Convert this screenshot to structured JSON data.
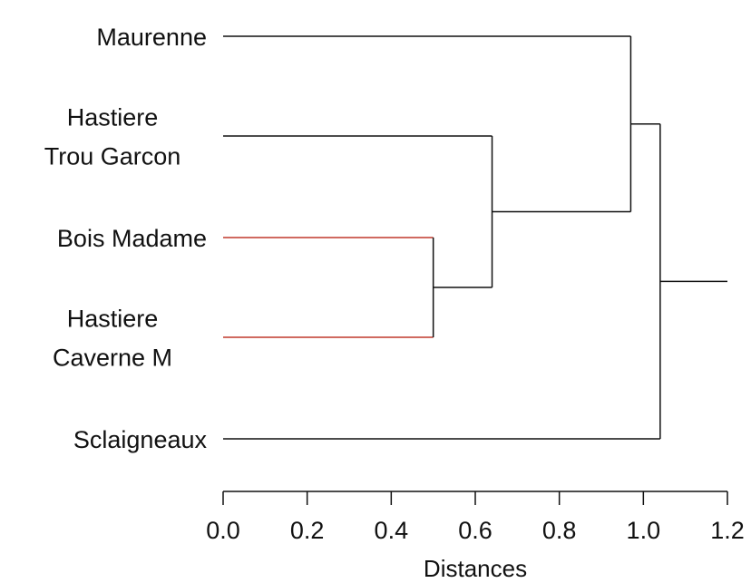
{
  "chart_data": {
    "type": "dendrogram",
    "orientation": "leaves-left",
    "xlabel": "Distances",
    "xlim": [
      0,
      1.2
    ],
    "ticks": [
      0.0,
      0.2,
      0.4,
      0.6,
      0.8,
      1.0,
      1.2
    ],
    "tick_labels": [
      "0.0",
      "0.2",
      "0.4",
      "0.6",
      "0.8",
      "1.0",
      "1.2"
    ],
    "highlight_color": "#c0392b",
    "line_color": "#111111",
    "leaves": [
      {
        "id": "maurenne",
        "label_lines": [
          "Maurenne"
        ]
      },
      {
        "id": "hastiere-trou-garcon",
        "label_lines": [
          "Hastiere",
          "Trou Garcon"
        ]
      },
      {
        "id": "bois-madame",
        "label_lines": [
          "Bois Madame"
        ]
      },
      {
        "id": "hastiere-caverne-m",
        "label_lines": [
          "Hastiere",
          "Caverne M"
        ]
      },
      {
        "id": "sclaigneaux",
        "label_lines": [
          "Sclaigneaux"
        ]
      }
    ],
    "merges": [
      {
        "id": "m1",
        "children": [
          "bois-madame",
          "hastiere-caverne-m"
        ],
        "height": 0.5,
        "highlight": true
      },
      {
        "id": "m2",
        "children": [
          "hastiere-trou-garcon",
          "m1"
        ],
        "height": 0.64
      },
      {
        "id": "m3",
        "children": [
          "maurenne",
          "m2"
        ],
        "height": 0.97
      },
      {
        "id": "m4",
        "children": [
          "m3",
          "sclaigneaux"
        ],
        "height": 1.04
      }
    ],
    "root_stem_to": 1.2
  }
}
